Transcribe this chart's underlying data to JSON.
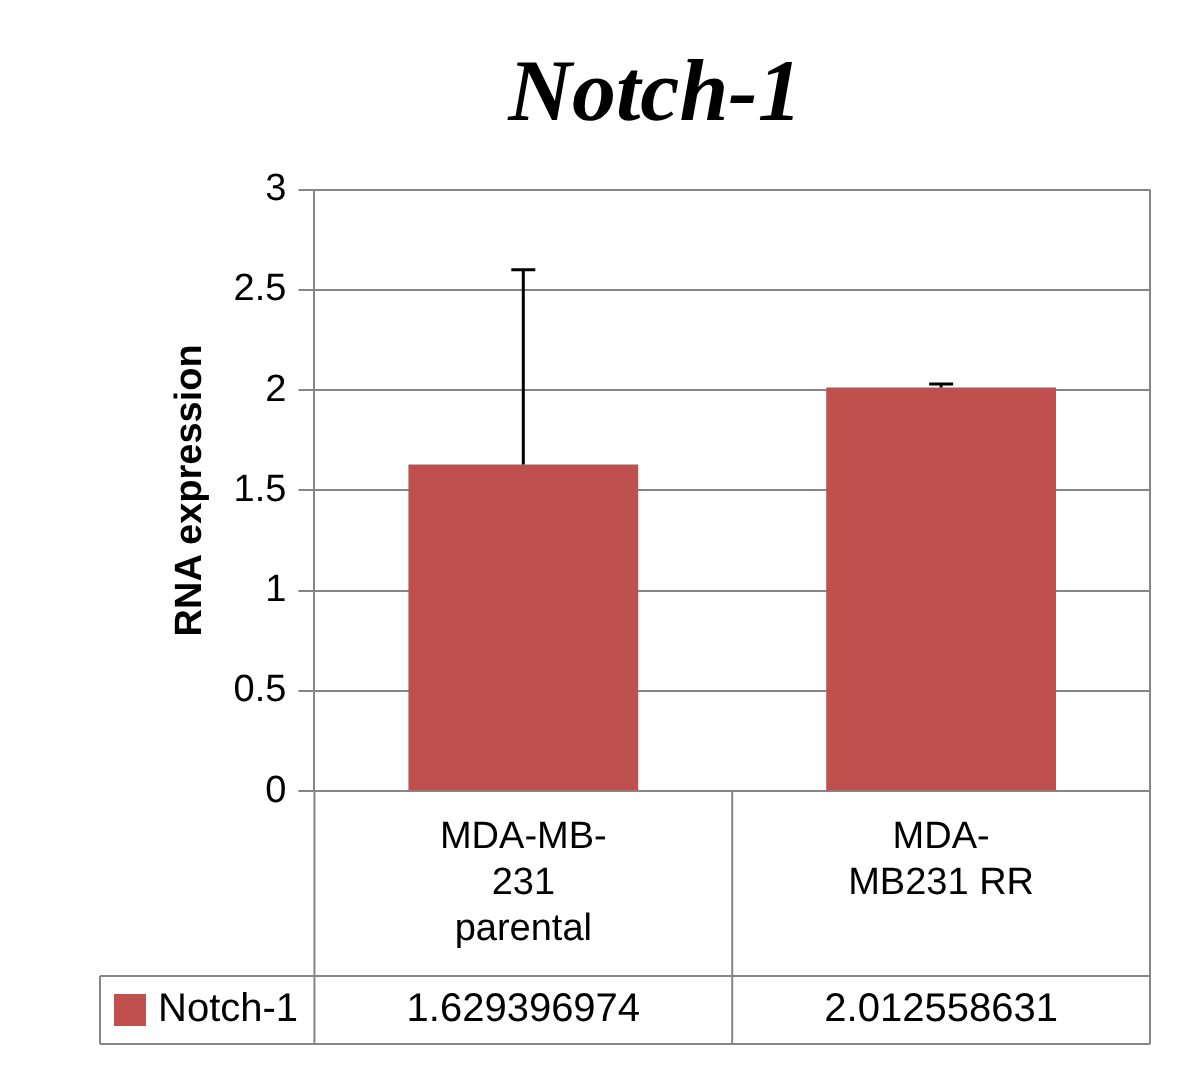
{
  "chart_data": {
    "type": "bar",
    "title": "Notch-1",
    "ylabel": "RNA expression",
    "categories": [
      "MDA-MB-231 parental",
      "MDA-MB231 RR"
    ],
    "series": [
      {
        "name": "Notch-1",
        "color": "#c0504d",
        "values": [
          1.629396974,
          2.012558631
        ],
        "errors": [
          [
            1.629396974,
            2.6
          ],
          [
            2.012558631,
            2.03
          ]
        ]
      }
    ],
    "ylim": [
      0,
      3
    ],
    "yticks": [
      0,
      0.5,
      1,
      1.5,
      2,
      2.5,
      3
    ],
    "grid": "y",
    "legend": "bottom",
    "data_labels": true
  }
}
